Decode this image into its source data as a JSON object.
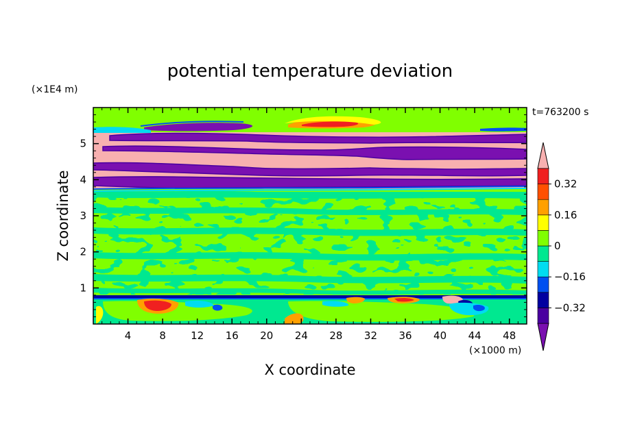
{
  "chart_data": {
    "type": "heatmap",
    "title": "potential temperature deviation",
    "xlabel": "X coordinate",
    "ylabel": "Z coordinate",
    "x_unit": "(×1000 m)",
    "y_unit": "(×1E4 m)",
    "time_label": "t=763200 s",
    "xlim": [
      0,
      50
    ],
    "ylim": [
      0,
      6
    ],
    "x_ticks": [
      4,
      8,
      12,
      16,
      20,
      24,
      28,
      32,
      36,
      40,
      44,
      48
    ],
    "y_ticks": [
      1,
      2,
      3,
      4,
      5
    ],
    "colorbar": {
      "levels": [
        -0.4,
        -0.32,
        -0.24,
        -0.16,
        -0.08,
        0,
        0.08,
        0.16,
        0.24,
        0.32,
        0.4
      ],
      "labeled_levels": [
        0.32,
        0.16,
        0,
        -0.16,
        -0.32
      ],
      "colors": [
        "#7a10b0",
        "#4a00a0",
        "#0000a0",
        "#0050f0",
        "#00dcf0",
        "#00e890",
        "#80ff00",
        "#ffff00",
        "#ffa000",
        "#ff5000",
        "#f02020",
        "#f8b0b0"
      ]
    },
    "layers": [
      {
        "z_range": [
          0,
          0.15
        ],
        "dominant": 0.04
      },
      {
        "z_range": [
          0.15,
          0.8
        ],
        "dominant": 0.04,
        "features": "warm cells near surface at x≈6–9, 30, 34–37, 40; cold cells at x≈15, 42–46"
      },
      {
        "z_range": [
          0.78,
          0.82
        ],
        "dominant": -0.36
      },
      {
        "z_range": [
          0.8,
          3.6
        ],
        "dominant": 0.04,
        "features": "alternating bands between about -0.04 and 0.04"
      },
      {
        "z_range": [
          3.6,
          3.8
        ],
        "dominant": 0.04
      },
      {
        "z_range": [
          3.8,
          5.3
        ],
        "dominant": "alternating bands",
        "features": "interleaved strong positive (>0.4) and strong negative (<-0.4) layers"
      },
      {
        "z_range": [
          5.3,
          6.0
        ],
        "dominant": 0.04,
        "features": "warm patch at x≈22–30 near z≈5.8; cold filaments at x≈10–20 near z≈5.5"
      }
    ]
  }
}
